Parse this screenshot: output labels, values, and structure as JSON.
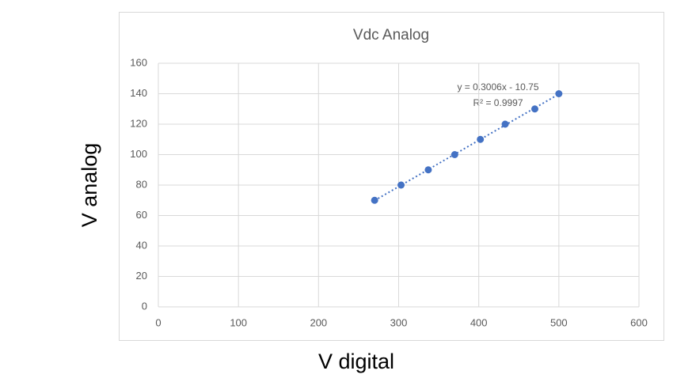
{
  "chart_data": {
    "type": "scatter",
    "title": "Vdc Analog",
    "x_label": "V digital",
    "y_label": "V analog",
    "series": [
      {
        "name": "V analog",
        "color": "#4472c4",
        "x": [
          270,
          303,
          337,
          370,
          402,
          433,
          470,
          500
        ],
        "values": [
          70,
          80,
          90,
          100,
          110,
          120,
          130,
          140
        ]
      }
    ],
    "trendline": {
      "type": "linear",
      "style": "dotted",
      "equation": "y = 0.3006x - 10.75",
      "r_squared": "R² = 0.9997"
    },
    "xlim": [
      0,
      600
    ],
    "xticks": [
      0,
      100,
      200,
      300,
      400,
      500,
      600
    ],
    "ylim": [
      0,
      160
    ],
    "yticks": [
      0,
      20,
      40,
      60,
      80,
      100,
      120,
      140,
      160
    ],
    "grid": true
  }
}
